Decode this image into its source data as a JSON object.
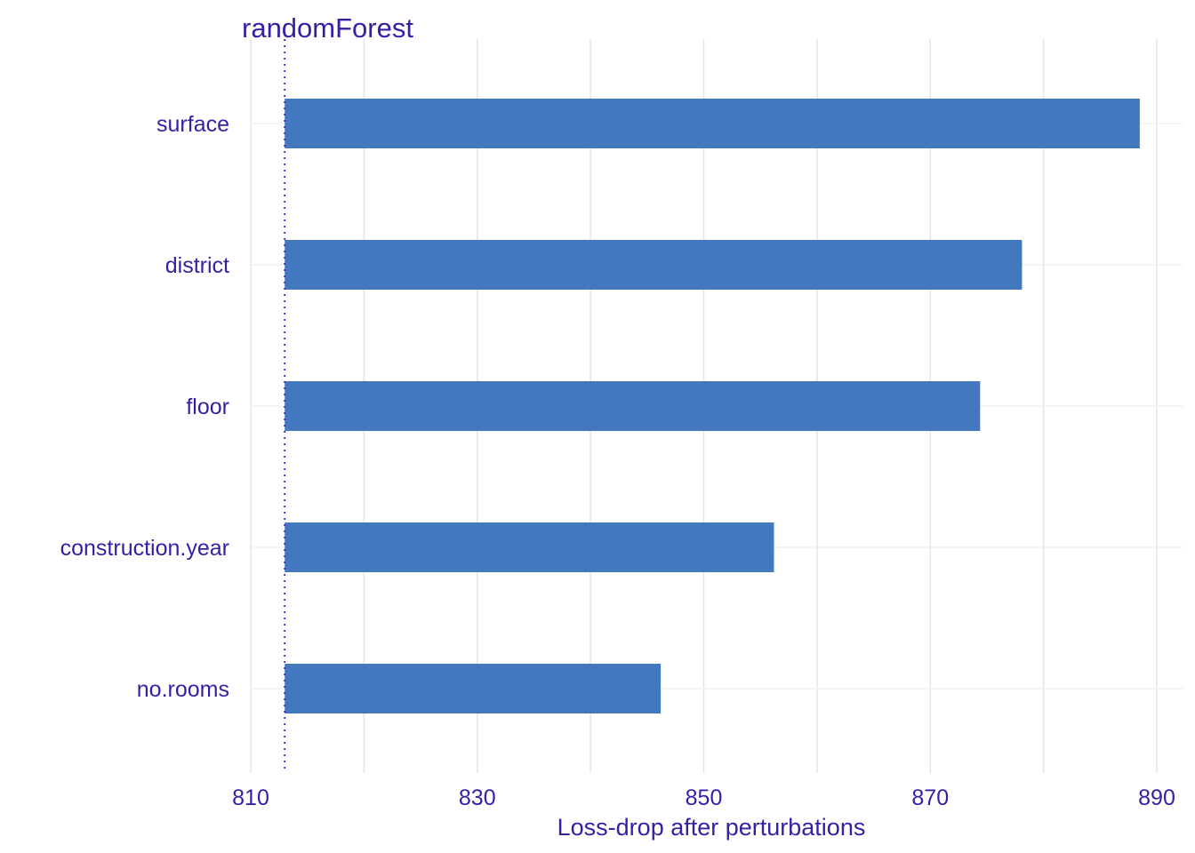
{
  "chart_data": {
    "type": "bar",
    "orientation": "horizontal",
    "title": "randomForest",
    "xlabel": "Loss-drop after perturbations",
    "ylabel": "",
    "baseline": 813.0,
    "categories": [
      "surface",
      "district",
      "floor",
      "construction.year",
      "no.rooms"
    ],
    "values": [
      888.5,
      878.1,
      874.4,
      856.2,
      846.2
    ],
    "xlim": [
      810,
      890
    ],
    "x_major_ticks": [
      810,
      830,
      850,
      870,
      890
    ],
    "x_minor_gridlines": [
      820,
      840,
      860,
      880
    ],
    "grid": true,
    "legend": "none",
    "colors": {
      "bar": "#4378bf",
      "text": "#371ea3",
      "grid": "#e6e6e6",
      "baseline": "#371ea3"
    }
  }
}
